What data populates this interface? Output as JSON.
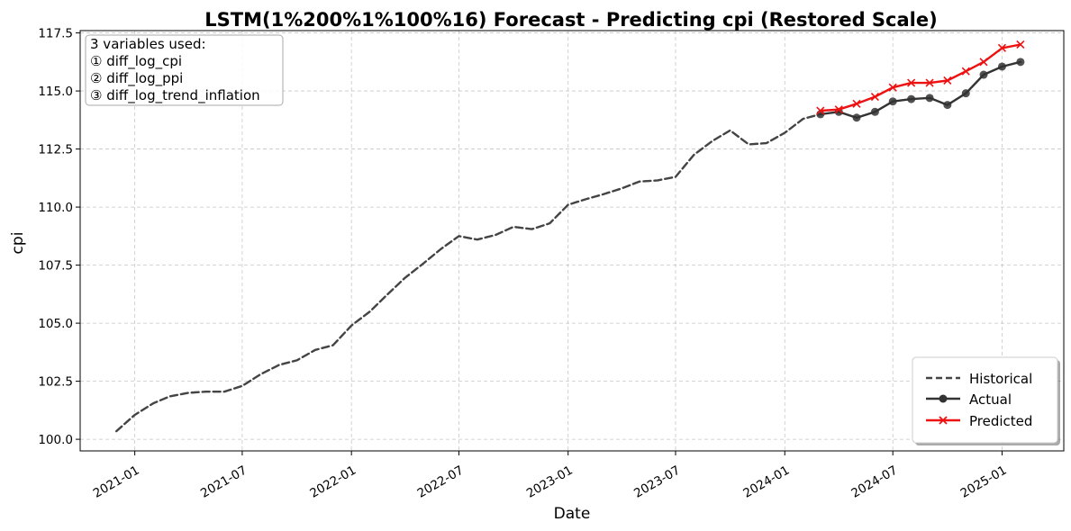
{
  "chart_data": {
    "type": "line",
    "title": "LSTM(1%200%1%100%16) Forecast - Predicting cpi (Restored Scale)",
    "xlabel": "Date",
    "ylabel": "cpi",
    "ylim": [
      99.5,
      117.6
    ],
    "xlim": [
      "2020-10-01",
      "2025-04-15"
    ],
    "grid": true,
    "y_ticks": [
      "100.0",
      "102.5",
      "105.0",
      "107.5",
      "110.0",
      "112.5",
      "115.0",
      "117.5"
    ],
    "x_ticks": [
      "2021-01",
      "2021-07",
      "2022-01",
      "2022-07",
      "2023-01",
      "2023-07",
      "2024-01",
      "2024-07",
      "2025-01"
    ],
    "legend_position": "lower-right",
    "info_box": {
      "heading": "3 variables used:",
      "items": [
        "① diff_log_cpi",
        "② diff_log_ppi",
        "③ diff_log_trend_inflation"
      ]
    },
    "series": [
      {
        "name": "Historical",
        "style": "dashed",
        "color": "#444444",
        "x": [
          "2020-12",
          "2021-01",
          "2021-02",
          "2021-03",
          "2021-04",
          "2021-05",
          "2021-06",
          "2021-07",
          "2021-08",
          "2021-09",
          "2021-10",
          "2021-11",
          "2021-12",
          "2022-01",
          "2022-02",
          "2022-03",
          "2022-04",
          "2022-05",
          "2022-06",
          "2022-07",
          "2022-08",
          "2022-09",
          "2022-10",
          "2022-11",
          "2022-12",
          "2023-01",
          "2023-02",
          "2023-03",
          "2023-04",
          "2023-05",
          "2023-06",
          "2023-07",
          "2023-08",
          "2023-09",
          "2023-10",
          "2023-11",
          "2023-12",
          "2024-01",
          "2024-02",
          "2024-03"
        ],
        "values": [
          100.35,
          101.05,
          101.55,
          101.85,
          102.0,
          102.05,
          102.05,
          102.3,
          102.8,
          103.2,
          103.4,
          103.85,
          104.05,
          104.9,
          105.5,
          106.2,
          106.95,
          107.55,
          108.2,
          108.75,
          108.6,
          108.8,
          109.15,
          109.05,
          109.3,
          110.1,
          110.35,
          110.55,
          110.8,
          111.1,
          111.15,
          111.3,
          112.25,
          112.85,
          113.3,
          112.7,
          112.75,
          113.2,
          113.8,
          114.0
        ]
      },
      {
        "name": "Actual",
        "style": "solid-circle",
        "color": "#333333",
        "x": [
          "2024-03",
          "2024-04",
          "2024-05",
          "2024-06",
          "2024-07",
          "2024-08",
          "2024-09",
          "2024-10",
          "2024-11",
          "2024-12",
          "2025-01",
          "2025-02"
        ],
        "values": [
          114.0,
          114.1,
          113.85,
          114.1,
          114.55,
          114.65,
          114.7,
          114.4,
          114.9,
          115.7,
          116.05,
          116.25
        ]
      },
      {
        "name": "Predicted",
        "style": "solid-x",
        "color": "#ee1111",
        "x": [
          "2024-03",
          "2024-04",
          "2024-05",
          "2024-06",
          "2024-07",
          "2024-08",
          "2024-09",
          "2024-10",
          "2024-11",
          "2024-12",
          "2025-01",
          "2025-02"
        ],
        "values": [
          114.15,
          114.2,
          114.45,
          114.75,
          115.15,
          115.35,
          115.35,
          115.45,
          115.85,
          116.25,
          116.85,
          117.0
        ]
      }
    ]
  }
}
